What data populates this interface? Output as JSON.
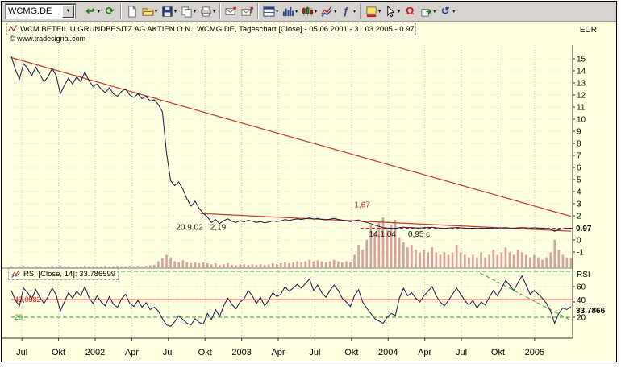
{
  "app": {
    "symbol_combo": {
      "value": "WCMG.DE"
    },
    "toolbar_items": [
      {
        "type": "button",
        "name": "navigate-back",
        "icon": "navigate-back-icon",
        "kind": "glyph",
        "glyph": "↩",
        "color": "#1e7d1e",
        "caret": true
      },
      {
        "type": "button",
        "name": "refresh",
        "icon": "refresh-icon",
        "kind": "glyph",
        "glyph": "⟳",
        "color": "#1e7d1e",
        "caret": false
      },
      {
        "type": "separator"
      },
      {
        "type": "button",
        "name": "new-document",
        "icon": "new-document-icon",
        "kind": "svg",
        "caret": false
      },
      {
        "type": "button",
        "name": "open-document",
        "icon": "open-folder-icon",
        "kind": "svg",
        "caret": true
      },
      {
        "type": "button",
        "name": "save",
        "icon": "save-icon",
        "kind": "svg",
        "caret": true
      },
      {
        "type": "button",
        "name": "copy",
        "icon": "copy-icon",
        "kind": "svg",
        "caret": true
      },
      {
        "type": "button",
        "name": "print",
        "icon": "print-icon",
        "kind": "svg",
        "caret": true
      },
      {
        "type": "separator"
      },
      {
        "type": "button",
        "name": "send-mail",
        "icon": "mail-icon",
        "kind": "svg",
        "caret": false
      },
      {
        "type": "button",
        "name": "mail-alert",
        "icon": "mail-flag-icon",
        "kind": "svg",
        "caret": false
      },
      {
        "type": "separator"
      },
      {
        "type": "button",
        "name": "window-layout",
        "icon": "window-layout-icon",
        "kind": "svg",
        "caret": true
      },
      {
        "type": "button",
        "name": "chart-type",
        "icon": "bar-chart-icon",
        "kind": "svg",
        "caret": true
      },
      {
        "type": "button",
        "name": "candle-style",
        "icon": "candle-chart-icon",
        "kind": "svg",
        "caret": true
      },
      {
        "type": "button",
        "name": "insert-indicator",
        "icon": "indicator-icon",
        "kind": "svg",
        "caret": true
      },
      {
        "type": "button",
        "name": "formula",
        "icon": "formula-icon",
        "kind": "glyph",
        "glyph": "ƒ",
        "color": "#27418c",
        "caret": true
      },
      {
        "type": "separator"
      },
      {
        "type": "button",
        "name": "fill-color",
        "icon": "fill-color-icon",
        "kind": "svg",
        "caret": true
      },
      {
        "type": "button",
        "name": "pointer-tool",
        "icon": "cursor-icon",
        "kind": "svg",
        "caret": true
      },
      {
        "type": "button",
        "name": "omega-tool",
        "icon": "omega-icon",
        "kind": "glyph",
        "glyph": "Ω",
        "color": "#cc1111",
        "caret": false
      },
      {
        "type": "button",
        "name": "export",
        "icon": "export-icon",
        "kind": "svg",
        "caret": true
      },
      {
        "type": "button",
        "name": "undo",
        "icon": "undo-icon",
        "kind": "glyph",
        "glyph": "↺",
        "color": "#27418c",
        "caret": true
      }
    ]
  },
  "chart": {
    "title_icon": "line-chart-icon",
    "title": "WCM BETEIL.U.GRUNDBESITZ AG AKTIEN O.N., WCMG.DE, Tageschart [Close] - 05.06.2001 - 31.03.2005 - 0.97",
    "currency": "EUR",
    "copyright": "© www.tradesignal.com",
    "last_price_label": "0.97"
  },
  "rsi": {
    "icon": "indicator-icon",
    "label": "RSI [Close, 14]: 33.786599",
    "pane_label": "RSI",
    "last_value_label": "33.7866",
    "level_label": "43,0582",
    "band_label": "20"
  },
  "chart_data": {
    "type": "line",
    "title": "WCM BETEIL.U.GRUNDBESITZ AG AKTIEN O.N., WCMG.DE, Tageschart [Close]",
    "symbol": "WCMG.DE",
    "date_range": [
      "05.06.2001",
      "31.03.2005"
    ],
    "last_close": 0.97,
    "currency": "EUR",
    "x_months_total": 45.85,
    "x_ticks": [
      {
        "label": "Jul",
        "m": 0.87
      },
      {
        "label": "Okt",
        "m": 3.87
      },
      {
        "label": "2002",
        "m": 6.87
      },
      {
        "label": "Apr",
        "m": 9.87
      },
      {
        "label": "Jul",
        "m": 12.87
      },
      {
        "label": "Okt",
        "m": 15.87
      },
      {
        "label": "2003",
        "m": 18.87
      },
      {
        "label": "Apr",
        "m": 21.87
      },
      {
        "label": "Jul",
        "m": 24.87
      },
      {
        "label": "Okt",
        "m": 27.87
      },
      {
        "label": "2004",
        "m": 30.87
      },
      {
        "label": "Apr",
        "m": 33.87
      },
      {
        "label": "Jul",
        "m": 36.87
      },
      {
        "label": "Okt",
        "m": 39.87
      },
      {
        "label": "2005",
        "m": 42.87
      }
    ],
    "price": {
      "ylim": [
        -1.1,
        15.6
      ],
      "axis_ticks": [
        15,
        14,
        13,
        12,
        11,
        10,
        9,
        8,
        7,
        6,
        5,
        4,
        3,
        2,
        0,
        -1
      ],
      "values": [
        15.2,
        14.1,
        13.3,
        14.6,
        14.2,
        13.6,
        14.3,
        13.7,
        13.1,
        13.5,
        14.2,
        13.6,
        12.1,
        12.8,
        13.4,
        12.9,
        13.5,
        13.1,
        13.9,
        13.2,
        12.7,
        12.9,
        12.5,
        12.2,
        12.6,
        12.1,
        11.9,
        12.3,
        12.5,
        12.0,
        11.8,
        12.1,
        11.7,
        11.9,
        11.5,
        11.6,
        11.2,
        10.6,
        7.2,
        4.9,
        4.5,
        4.8,
        4.2,
        3.4,
        2.8,
        3.2,
        2.6,
        2.2,
        1.9,
        1.45,
        1.7,
        1.35,
        1.6,
        1.75,
        1.55,
        1.45,
        1.6,
        1.5,
        1.62,
        1.55,
        1.45,
        1.52,
        1.42,
        1.48,
        1.58,
        1.52,
        1.58,
        1.68,
        1.62,
        1.68,
        1.74,
        1.7,
        1.76,
        1.82,
        1.72,
        1.78,
        1.7,
        1.66,
        1.72,
        1.78,
        1.7,
        1.64,
        1.58,
        1.52,
        1.6,
        1.66,
        1.52,
        1.45,
        1.35,
        1.22,
        1.12,
        1.02,
        0.98,
        0.96,
        0.95,
        1.02,
        1.06,
        1.01,
        1.03,
        1.0,
        0.98,
        1.01,
        1.03,
        1.05,
        1.0,
        0.97,
        0.95,
        0.98,
        1.0,
        1.03,
        1.0,
        0.97,
        0.95,
        0.97,
        0.94,
        0.96,
        0.95,
        0.97,
        1.0,
        0.98,
        1.0,
        1.02,
        0.99,
        0.97,
        1.0,
        1.02,
        1.0,
        0.98,
        1.0,
        0.99,
        0.97,
        0.94,
        0.88,
        0.72,
        0.84,
        0.91,
        0.94,
        0.97
      ]
    },
    "volume": {
      "values": [
        0.02,
        0.01,
        0.02,
        0.03,
        0.02,
        0.01,
        0.02,
        0.02,
        0.01,
        0.02,
        0.03,
        0.02,
        0.04,
        0.02,
        0.02,
        0.01,
        0.02,
        0.02,
        0.03,
        0.02,
        0.02,
        0.02,
        0.02,
        0.03,
        0.02,
        0.02,
        0.03,
        0.02,
        0.02,
        0.03,
        0.02,
        0.03,
        0.02,
        0.03,
        0.04,
        0.05,
        0.12,
        0.18,
        0.25,
        0.2,
        0.12,
        0.1,
        0.14,
        0.1,
        0.08,
        0.1,
        0.08,
        0.1,
        0.08,
        0.06,
        0.08,
        0.05,
        0.06,
        0.08,
        0.05,
        0.04,
        0.06,
        0.06,
        0.05,
        0.06,
        0.05,
        0.06,
        0.05,
        0.06,
        0.08,
        0.06,
        0.08,
        0.1,
        0.08,
        0.1,
        0.12,
        0.1,
        0.12,
        0.15,
        0.12,
        0.14,
        0.12,
        0.1,
        0.12,
        0.15,
        0.12,
        0.1,
        0.12,
        0.1,
        0.25,
        0.45,
        0.35,
        0.55,
        0.85,
        0.7,
        0.9,
        1.0,
        0.75,
        0.85,
        0.95,
        0.6,
        0.5,
        0.4,
        0.45,
        0.35,
        0.3,
        0.35,
        0.3,
        0.4,
        0.3,
        0.25,
        0.3,
        0.25,
        0.3,
        0.45,
        0.3,
        0.25,
        0.2,
        0.25,
        0.2,
        0.3,
        0.2,
        0.25,
        0.35,
        0.25,
        0.3,
        0.4,
        0.3,
        0.25,
        0.35,
        0.3,
        0.25,
        0.2,
        0.25,
        0.2,
        0.15,
        0.2,
        0.3,
        0.55,
        0.35,
        0.25,
        0.2,
        0.18
      ]
    },
    "rsi": {
      "name": "RSI [Close, 14]",
      "value": 33.786599,
      "axis_ticks": [
        60,
        40,
        20
      ],
      "bands": {
        "upper": 80,
        "lower": 20
      },
      "level_line": 43.0582,
      "values": [
        55,
        42,
        35,
        58,
        52,
        44,
        56,
        46,
        38,
        47,
        58,
        49,
        28,
        40,
        52,
        45,
        54,
        48,
        60,
        46,
        38,
        48,
        40,
        35,
        47,
        37,
        33,
        44,
        50,
        38,
        34,
        42,
        33,
        39,
        30,
        33,
        28,
        18,
        10,
        8,
        14,
        22,
        17,
        12,
        10,
        18,
        13,
        11,
        25,
        17,
        30,
        21,
        35,
        45,
        37,
        31,
        40,
        44,
        55,
        48,
        38,
        46,
        35,
        42,
        52,
        47,
        50,
        60,
        54,
        58,
        63,
        58,
        64,
        70,
        55,
        62,
        52,
        46,
        55,
        62,
        55,
        45,
        40,
        34,
        48,
        56,
        40,
        32,
        25,
        18,
        15,
        12,
        20,
        25,
        22,
        45,
        58,
        48,
        52,
        45,
        40,
        48,
        54,
        60,
        48,
        40,
        35,
        42,
        50,
        58,
        50,
        42,
        36,
        42,
        32,
        40,
        36,
        46,
        55,
        48,
        58,
        68,
        62,
        55,
        65,
        74,
        62,
        50,
        55,
        50,
        45,
        38,
        28,
        12,
        25,
        32,
        30,
        33.8
      ]
    },
    "trendlines": [
      {
        "name": "downtrend-line",
        "from_m": 0,
        "from_v": 15.1,
        "to_m": 45.85,
        "to_v": 1.95,
        "color": "#c03a2b"
      },
      {
        "name": "support-line",
        "from_m": 15.5,
        "from_v": 2.19,
        "to_m": 45.85,
        "to_v": 0.72,
        "color": "#c03a2b"
      }
    ],
    "last_price_line": {
      "value": 0.97,
      "from_m": 28.6,
      "style": "dashed",
      "color": "#e02020"
    },
    "annotations": [
      {
        "text": "1,67",
        "m": 28.1,
        "v": 2.7,
        "color": "#cc2222"
      },
      {
        "text": "20.9.02",
        "m": 13.5,
        "v": 0.85,
        "color": "#1a1a1a"
      },
      {
        "text": "2,19",
        "m": 16.3,
        "v": 0.85,
        "color": "#1a1a1a"
      },
      {
        "text": "14.1.04",
        "m": 29.3,
        "v": 0.27,
        "color": "#1a1a1a"
      },
      {
        "text": "0,95 c",
        "m": 32.5,
        "v": 0.27,
        "color": "#1a1a1a"
      }
    ],
    "rsi_trendline": {
      "from_m": 38.4,
      "from_v": 78,
      "to_m": 45.85,
      "to_v": 16,
      "color": "#2e9e2e",
      "style": "dashed"
    }
  }
}
